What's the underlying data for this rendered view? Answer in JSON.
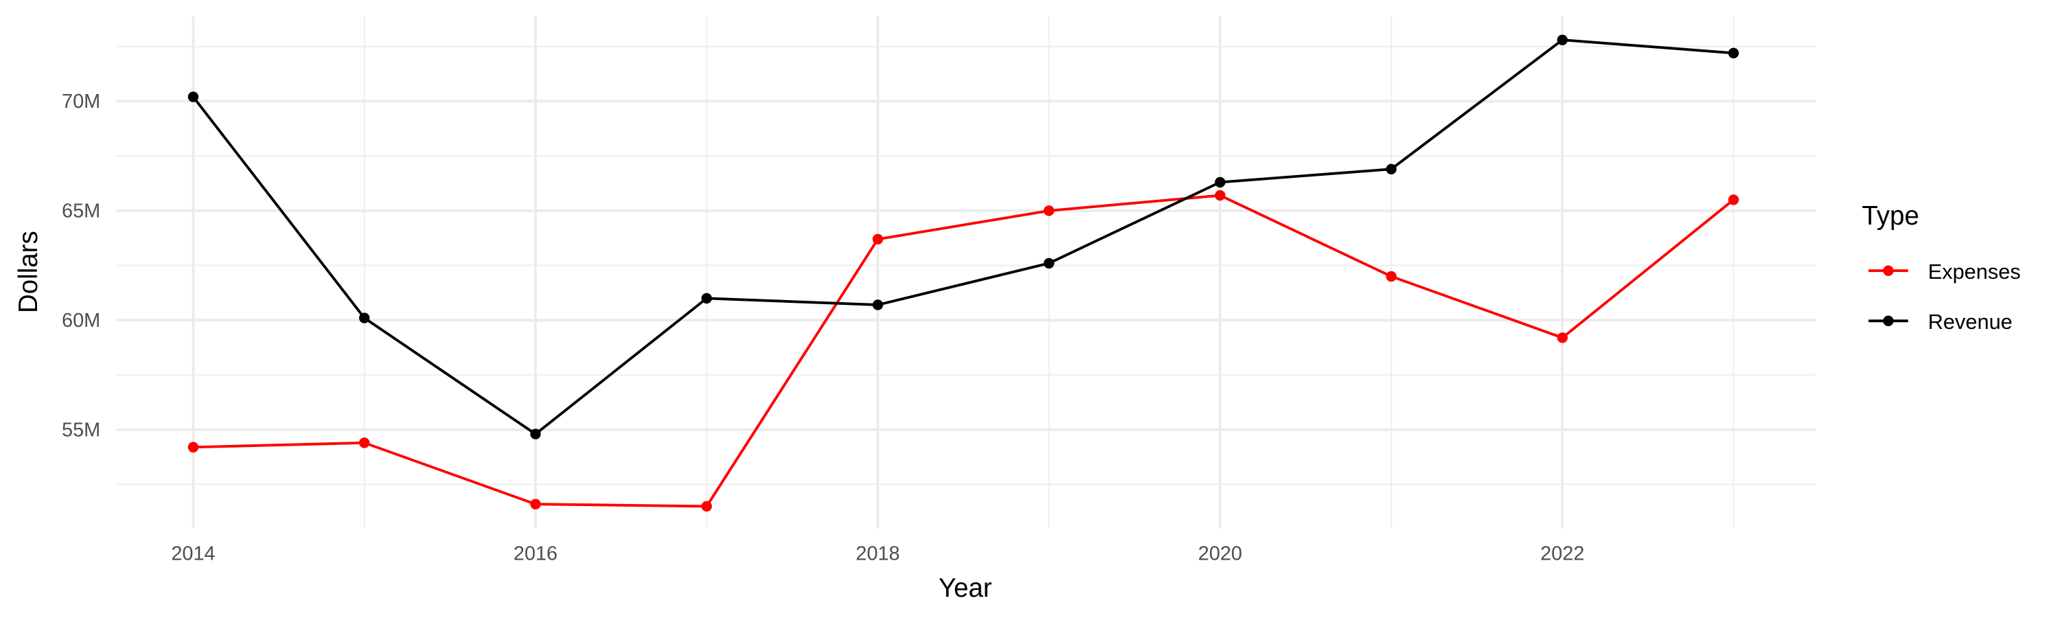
{
  "chart_data": {
    "type": "line",
    "x_label": "Year",
    "y_label": "Dollars",
    "legend_title": "Type",
    "x": [
      2014,
      2015,
      2016,
      2017,
      2018,
      2019,
      2020,
      2021,
      2022,
      2023
    ],
    "series": [
      {
        "name": "Expenses",
        "color": "#ff0000",
        "values": [
          54200000,
          54400000,
          51600000,
          51500000,
          63700000,
          65000000,
          65700000,
          62000000,
          59200000,
          65500000
        ]
      },
      {
        "name": "Revenue",
        "color": "#000000",
        "values": [
          70200000,
          60100000,
          54800000,
          61000000,
          60700000,
          62600000,
          66300000,
          66900000,
          72800000,
          72200000
        ]
      }
    ],
    "xlim": [
      2013.55,
      2023.48
    ],
    "ylim": [
      50500000,
      73900000
    ],
    "xticks": [
      2014,
      2016,
      2018,
      2020,
      2022
    ],
    "xticks_minor": [
      2015,
      2017,
      2019,
      2021,
      2023
    ],
    "yticks": [
      {
        "value": 55000000,
        "label": "55M"
      },
      {
        "value": 60000000,
        "label": "60M"
      },
      {
        "value": 65000000,
        "label": "65M"
      },
      {
        "value": 70000000,
        "label": "70M"
      }
    ],
    "yticks_minor": [
      52500000,
      57500000,
      62500000,
      67500000,
      72500000
    ],
    "grid": true,
    "legend": "right"
  }
}
